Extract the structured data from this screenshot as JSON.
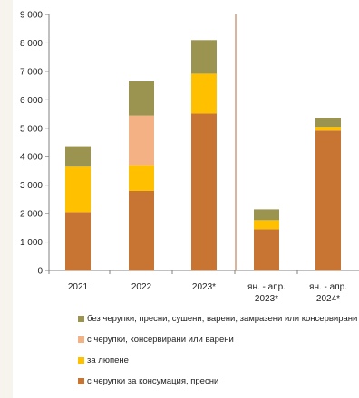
{
  "chart_data": {
    "type": "bar",
    "stacked": true,
    "categories": [
      "2021",
      "2022",
      "2023*",
      "ян. - апр. 2023*",
      "ян. - апр. 2024*"
    ],
    "category_lines": [
      [
        "2021"
      ],
      [
        "2022"
      ],
      [
        "2023*"
      ],
      [
        "ян. - апр.",
        "2023*"
      ],
      [
        "ян. - апр.",
        "2024*"
      ]
    ],
    "series": [
      {
        "name": "с черупки за консумация, пресни",
        "color": "#c87533",
        "values": [
          2050,
          2800,
          5520,
          1450,
          4920
        ]
      },
      {
        "name": "за люпене",
        "color": "#ffc000",
        "values": [
          1600,
          900,
          1400,
          320,
          130
        ]
      },
      {
        "name": "с черупки, консервирани или варени",
        "color": "#f4b183",
        "values": [
          0,
          1750,
          0,
          0,
          0
        ]
      },
      {
        "name": "без черупки, пресни, сушени, варени, замразени или консервирани",
        "color": "#9b9450",
        "values": [
          720,
          1200,
          1180,
          380,
          310
        ]
      }
    ],
    "y_ticks": [
      "0",
      "1 000",
      "2 000",
      "3 000",
      "4 000",
      "5 000",
      "6 000",
      "7 000",
      "8 000",
      "9 000"
    ],
    "ylim": [
      0,
      9000
    ],
    "grid": false,
    "legend_position": "bottom",
    "divider_after_category": 2,
    "divider_color": "#c0845a"
  }
}
